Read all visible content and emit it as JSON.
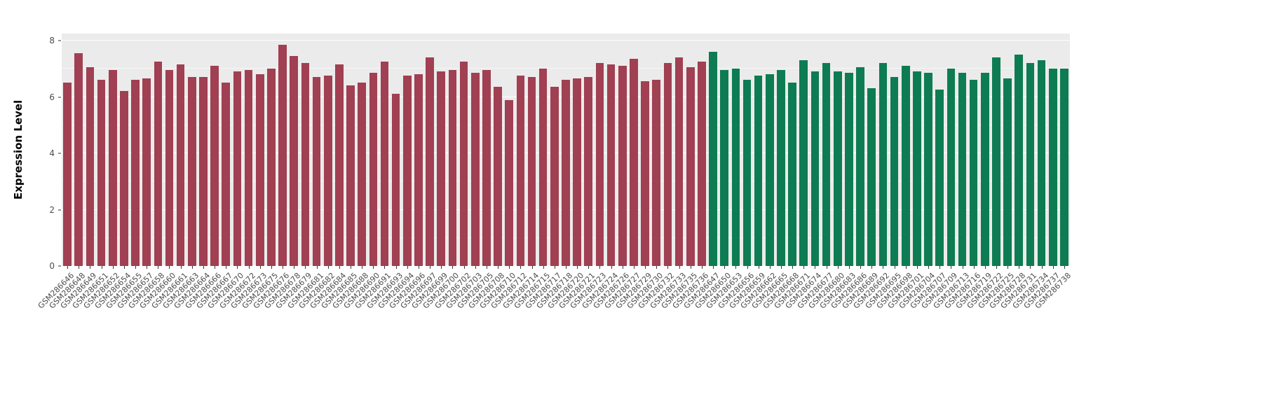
{
  "figure": {
    "background": "#ffffff",
    "panel_background": "#ebebeb",
    "gridline_color": "#ffffff",
    "axis_text_color": "#4d4d4d",
    "tick_mark_color": "#333333"
  },
  "chart_data": {
    "type": "bar",
    "title": "",
    "xlabel": "",
    "ylabel": "Expression Level",
    "ylim": [
      0,
      8
    ],
    "yticks": [
      0,
      2,
      4,
      6,
      8
    ],
    "grid": "horizontal-major-and-minor",
    "legend": "none",
    "x_label_angle": 45,
    "group_colors": {
      "group1": "#A04052",
      "group2": "#0E7C52"
    },
    "bars": [
      {
        "label": "GSM286646",
        "value": 6.5,
        "group": "group1"
      },
      {
        "label": "GSM286648",
        "value": 7.55,
        "group": "group1"
      },
      {
        "label": "GSM286649",
        "value": 7.05,
        "group": "group1"
      },
      {
        "label": "GSM286651",
        "value": 6.6,
        "group": "group1"
      },
      {
        "label": "GSM286652",
        "value": 6.95,
        "group": "group1"
      },
      {
        "label": "GSM286654",
        "value": 6.2,
        "group": "group1"
      },
      {
        "label": "GSM286655",
        "value": 6.6,
        "group": "group1"
      },
      {
        "label": "GSM286657",
        "value": 6.65,
        "group": "group1"
      },
      {
        "label": "GSM286658",
        "value": 7.25,
        "group": "group1"
      },
      {
        "label": "GSM286660",
        "value": 6.95,
        "group": "group1"
      },
      {
        "label": "GSM286661",
        "value": 7.15,
        "group": "group1"
      },
      {
        "label": "GSM286663",
        "value": 6.7,
        "group": "group1"
      },
      {
        "label": "GSM286664",
        "value": 6.7,
        "group": "group1"
      },
      {
        "label": "GSM286666",
        "value": 7.1,
        "group": "group1"
      },
      {
        "label": "GSM286667",
        "value": 6.5,
        "group": "group1"
      },
      {
        "label": "GSM286670",
        "value": 6.9,
        "group": "group1"
      },
      {
        "label": "GSM286672",
        "value": 6.95,
        "group": "group1"
      },
      {
        "label": "GSM286673",
        "value": 6.8,
        "group": "group1"
      },
      {
        "label": "GSM286675",
        "value": 7.0,
        "group": "group1"
      },
      {
        "label": "GSM286676",
        "value": 7.85,
        "group": "group1"
      },
      {
        "label": "GSM286678",
        "value": 7.45,
        "group": "group1"
      },
      {
        "label": "GSM286679",
        "value": 7.2,
        "group": "group1"
      },
      {
        "label": "GSM286681",
        "value": 6.7,
        "group": "group1"
      },
      {
        "label": "GSM286682",
        "value": 6.75,
        "group": "group1"
      },
      {
        "label": "GSM286684",
        "value": 7.15,
        "group": "group1"
      },
      {
        "label": "GSM286685",
        "value": 6.4,
        "group": "group1"
      },
      {
        "label": "GSM286688",
        "value": 6.5,
        "group": "group1"
      },
      {
        "label": "GSM286690",
        "value": 6.85,
        "group": "group1"
      },
      {
        "label": "GSM286691",
        "value": 7.25,
        "group": "group1"
      },
      {
        "label": "GSM286693",
        "value": 6.1,
        "group": "group1"
      },
      {
        "label": "GSM286694",
        "value": 6.75,
        "group": "group1"
      },
      {
        "label": "GSM286696",
        "value": 6.8,
        "group": "group1"
      },
      {
        "label": "GSM286697",
        "value": 7.4,
        "group": "group1"
      },
      {
        "label": "GSM286699",
        "value": 6.9,
        "group": "group1"
      },
      {
        "label": "GSM286700",
        "value": 6.95,
        "group": "group1"
      },
      {
        "label": "GSM286702",
        "value": 7.25,
        "group": "group1"
      },
      {
        "label": "GSM286703",
        "value": 6.85,
        "group": "group1"
      },
      {
        "label": "GSM286705",
        "value": 6.95,
        "group": "group1"
      },
      {
        "label": "GSM286708",
        "value": 6.35,
        "group": "group1"
      },
      {
        "label": "GSM286710",
        "value": 5.9,
        "group": "group1"
      },
      {
        "label": "GSM286712",
        "value": 6.75,
        "group": "group1"
      },
      {
        "label": "GSM286714",
        "value": 6.7,
        "group": "group1"
      },
      {
        "label": "GSM286715",
        "value": 7.0,
        "group": "group1"
      },
      {
        "label": "GSM286717",
        "value": 6.35,
        "group": "group1"
      },
      {
        "label": "GSM286718",
        "value": 6.6,
        "group": "group1"
      },
      {
        "label": "GSM286720",
        "value": 6.65,
        "group": "group1"
      },
      {
        "label": "GSM286721",
        "value": 6.7,
        "group": "group1"
      },
      {
        "label": "GSM286723",
        "value": 7.2,
        "group": "group1"
      },
      {
        "label": "GSM286724",
        "value": 7.15,
        "group": "group1"
      },
      {
        "label": "GSM286726",
        "value": 7.1,
        "group": "group1"
      },
      {
        "label": "GSM286727",
        "value": 7.35,
        "group": "group1"
      },
      {
        "label": "GSM286729",
        "value": 6.55,
        "group": "group1"
      },
      {
        "label": "GSM286730",
        "value": 6.6,
        "group": "group1"
      },
      {
        "label": "GSM286732",
        "value": 7.2,
        "group": "group1"
      },
      {
        "label": "GSM286733",
        "value": 7.4,
        "group": "group1"
      },
      {
        "label": "GSM286735",
        "value": 7.05,
        "group": "group1"
      },
      {
        "label": "GSM286736",
        "value": 7.25,
        "group": "group1"
      },
      {
        "label": "GSM286647",
        "value": 7.6,
        "group": "group2"
      },
      {
        "label": "GSM286650",
        "value": 6.95,
        "group": "group2"
      },
      {
        "label": "GSM286653",
        "value": 7.0,
        "group": "group2"
      },
      {
        "label": "GSM286656",
        "value": 6.6,
        "group": "group2"
      },
      {
        "label": "GSM286659",
        "value": 6.75,
        "group": "group2"
      },
      {
        "label": "GSM286662",
        "value": 6.8,
        "group": "group2"
      },
      {
        "label": "GSM286665",
        "value": 6.95,
        "group": "group2"
      },
      {
        "label": "GSM286668",
        "value": 6.5,
        "group": "group2"
      },
      {
        "label": "GSM286671",
        "value": 7.3,
        "group": "group2"
      },
      {
        "label": "GSM286674",
        "value": 6.9,
        "group": "group2"
      },
      {
        "label": "GSM286677",
        "value": 7.2,
        "group": "group2"
      },
      {
        "label": "GSM286680",
        "value": 6.9,
        "group": "group2"
      },
      {
        "label": "GSM286683",
        "value": 6.85,
        "group": "group2"
      },
      {
        "label": "GSM286686",
        "value": 7.05,
        "group": "group2"
      },
      {
        "label": "GSM286689",
        "value": 6.3,
        "group": "group2"
      },
      {
        "label": "GSM286692",
        "value": 7.2,
        "group": "group2"
      },
      {
        "label": "GSM286695",
        "value": 6.7,
        "group": "group2"
      },
      {
        "label": "GSM286698",
        "value": 7.1,
        "group": "group2"
      },
      {
        "label": "GSM286701",
        "value": 6.9,
        "group": "group2"
      },
      {
        "label": "GSM286704",
        "value": 6.85,
        "group": "group2"
      },
      {
        "label": "GSM286707",
        "value": 6.25,
        "group": "group2"
      },
      {
        "label": "GSM286709",
        "value": 7.0,
        "group": "group2"
      },
      {
        "label": "GSM286713",
        "value": 6.85,
        "group": "group2"
      },
      {
        "label": "GSM286716",
        "value": 6.6,
        "group": "group2"
      },
      {
        "label": "GSM286719",
        "value": 6.85,
        "group": "group2"
      },
      {
        "label": "GSM286722",
        "value": 7.4,
        "group": "group2"
      },
      {
        "label": "GSM286725",
        "value": 6.65,
        "group": "group2"
      },
      {
        "label": "GSM286728",
        "value": 7.5,
        "group": "group2"
      },
      {
        "label": "GSM286731",
        "value": 7.2,
        "group": "group2"
      },
      {
        "label": "GSM286734",
        "value": 7.3,
        "group": "group2"
      },
      {
        "label": "GSM286737",
        "value": 7.0,
        "group": "group2"
      },
      {
        "label": "GSM286738",
        "value": 7.0,
        "group": "group2"
      }
    ]
  }
}
